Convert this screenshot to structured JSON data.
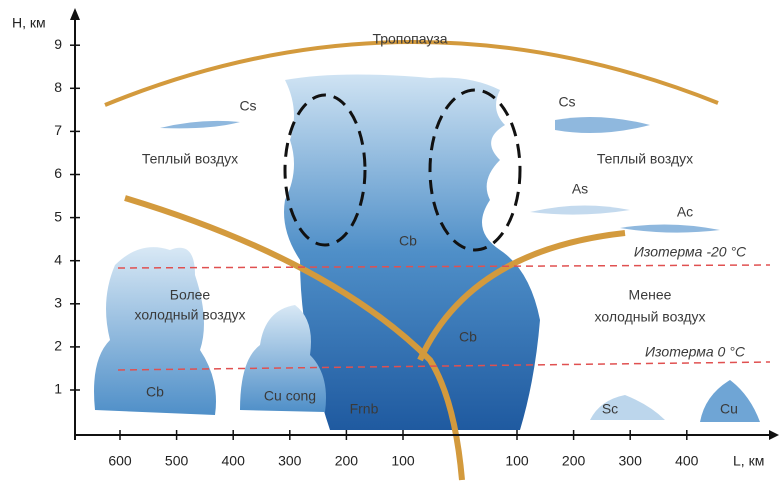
{
  "axes": {
    "y_label": "H, км",
    "x_label": "L, км",
    "y_ticks": [
      1,
      2,
      3,
      4,
      5,
      6,
      7,
      8,
      9
    ],
    "x_ticks_left": [
      600,
      500,
      400,
      300,
      200,
      100
    ],
    "x_ticks_right": [
      100,
      200,
      300,
      400
    ]
  },
  "labels": {
    "tropopause": "Тропопауза",
    "cs_left": "Cs",
    "cs_right": "Cs",
    "warm_left": "Теплый воздух",
    "warm_right": "Теплый воздух",
    "as": "As",
    "ac": "Ac",
    "cb_top": "Cb",
    "isotherm_20": "Изотерма -20 °C",
    "isotherm_0": "Изотерма 0 °C",
    "colder_1": "Более",
    "colder_2": "холодный воздух",
    "less_cold_1": "Менее",
    "less_cold_2": "холодный воздух",
    "cb_right": "Cb",
    "cb_left": "Cb",
    "cu_cong": "Cu cong",
    "frnb": "Frnb",
    "sc": "Sc",
    "cu": "Cu"
  }
}
